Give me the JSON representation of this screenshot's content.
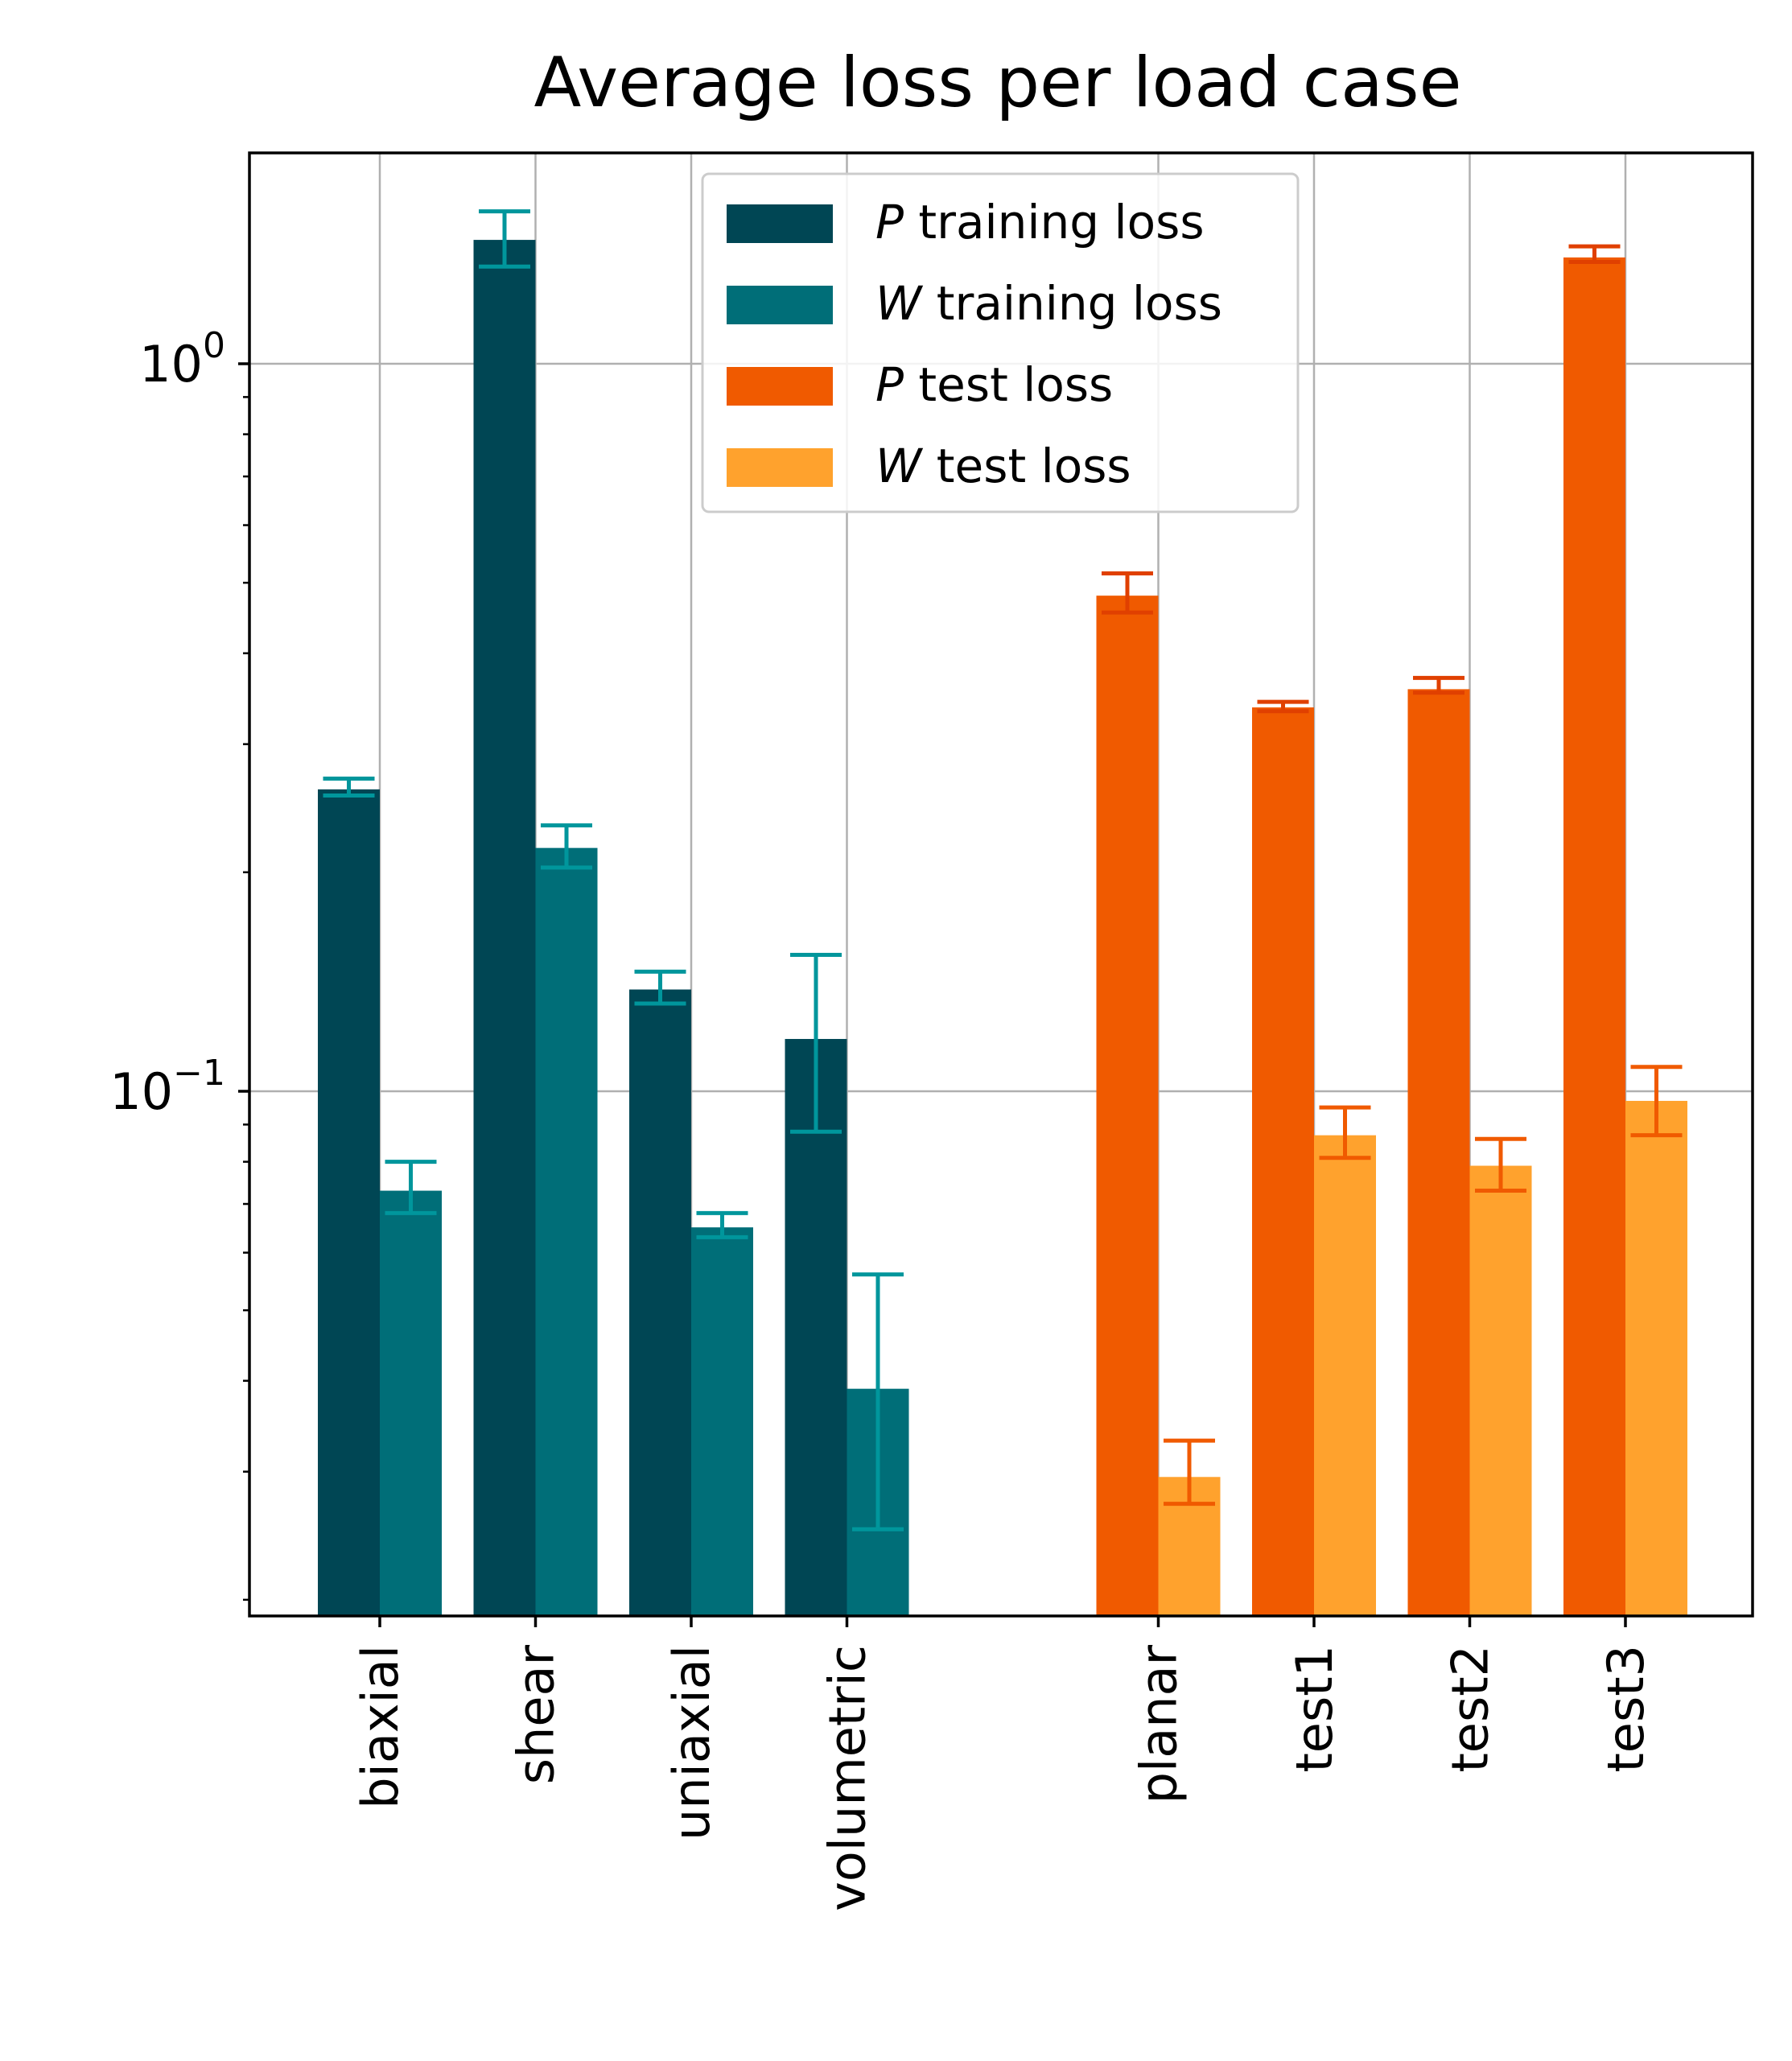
{
  "chart_data": {
    "type": "bar",
    "title": "Average loss per load case",
    "xlabel": "",
    "ylabel": "",
    "yscale": "log",
    "ylim": [
      0.02,
      1.7
    ],
    "y_ticks": [
      {
        "value": 1.0,
        "base": "10",
        "exp": "0"
      },
      {
        "value": 0.1,
        "base": "10",
        "exp": "−1"
      }
    ],
    "grid": true,
    "legend_position": "upper center",
    "groups": [
      {
        "name": "training",
        "categories": [
          "biaxial",
          "shear",
          "uniaxial",
          "volumetric"
        ],
        "series": [
          {
            "name": "training loss",
            "symbol": "P",
            "color": "#004654",
            "values": [
              0.26,
              1.48,
              0.138,
              0.118
            ],
            "err_low": [
              0.255,
              1.36,
              0.132,
              0.088
            ],
            "err_high": [
              0.269,
              1.62,
              0.146,
              0.154
            ]
          },
          {
            "name": "training loss",
            "symbol": "W",
            "color": "#006e78",
            "values": [
              0.073,
              0.216,
              0.065,
              0.039
            ],
            "err_low": [
              0.068,
              0.203,
              0.063,
              0.025
            ],
            "err_high": [
              0.08,
              0.232,
              0.068,
              0.056
            ]
          }
        ]
      },
      {
        "name": "test",
        "categories": [
          "planar",
          "test1",
          "test2",
          "test3"
        ],
        "series": [
          {
            "name": "test loss",
            "symbol": "P",
            "color": "#f05a00",
            "values": [
              0.48,
              0.337,
              0.357,
              1.4
            ],
            "err_low": [
              0.455,
              0.333,
              0.353,
              1.38
            ],
            "err_high": [
              0.515,
              0.343,
              0.37,
              1.45
            ]
          },
          {
            "name": "test loss",
            "symbol": "W",
            "color": "#ffa22d",
            "values": [
              0.0295,
              0.087,
              0.079,
              0.097
            ],
            "err_low": [
              0.0271,
              0.081,
              0.073,
              0.087
            ],
            "err_high": [
              0.0331,
              0.095,
              0.086,
              0.108
            ]
          }
        ]
      }
    ],
    "error_bar_colors": [
      "#00969c",
      "#00969c",
      "#e04000",
      "#f05a00"
    ],
    "legend": [
      {
        "symbol": "P",
        "label": "training loss",
        "color": "#004654"
      },
      {
        "symbol": "W",
        "label": "training loss",
        "color": "#006e78"
      },
      {
        "symbol": "P",
        "label": "test loss",
        "color": "#f05a00"
      },
      {
        "symbol": "W",
        "label": "test loss",
        "color": "#ffa22d"
      }
    ]
  }
}
